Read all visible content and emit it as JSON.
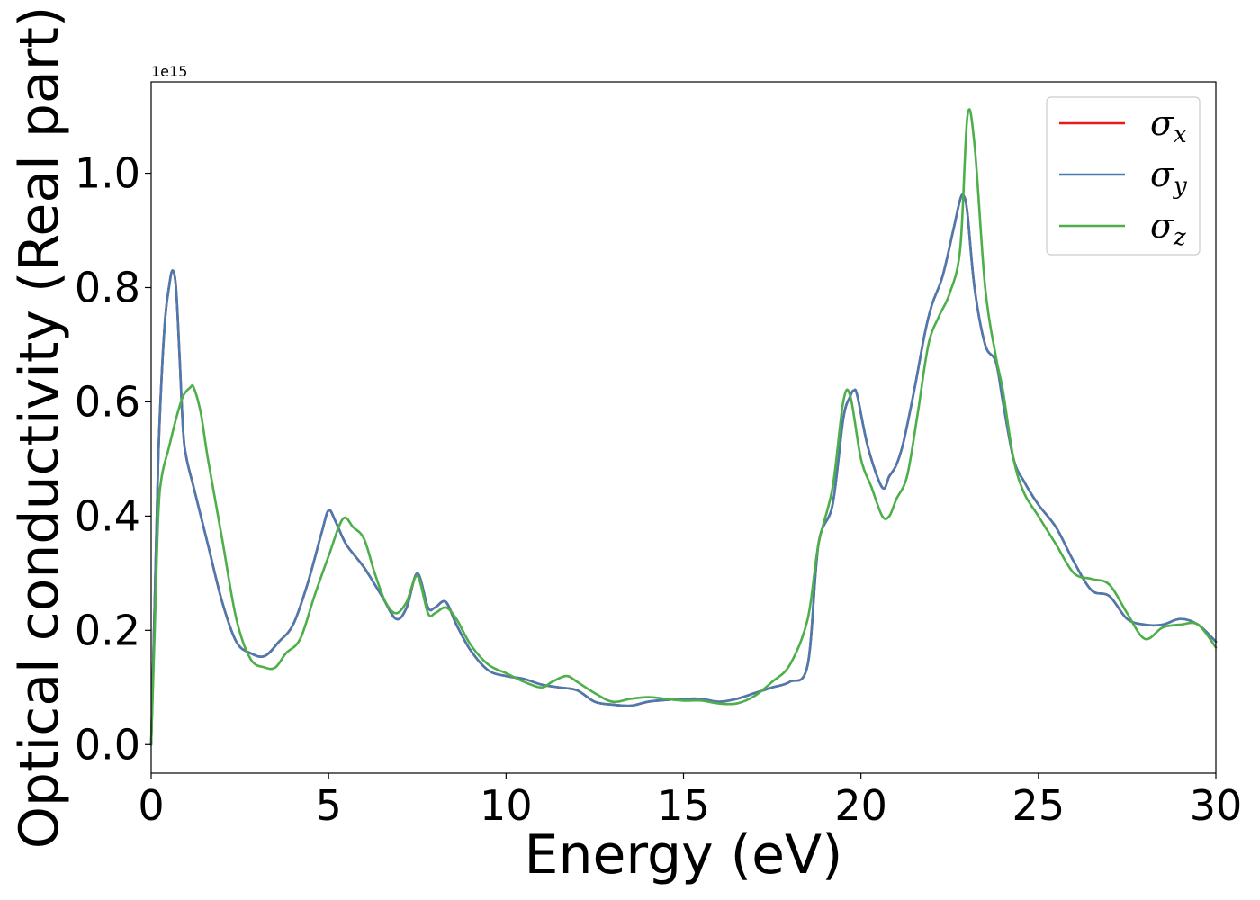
{
  "chart_data": {
    "type": "line",
    "title": "",
    "xlabel": "Energy (eV)",
    "ylabel": "Optical conductivity (Real part)",
    "y_offset_label": "1e15",
    "xlim": [
      0,
      30
    ],
    "ylim": [
      -0.05,
      1.16
    ],
    "xticks": [
      0,
      5,
      10,
      15,
      20,
      25,
      30
    ],
    "xtick_labels": [
      "0",
      "5",
      "10",
      "15",
      "20",
      "25",
      "30"
    ],
    "yticks": [
      0.0,
      0.2,
      0.4,
      0.6,
      0.8,
      1.0
    ],
    "ytick_labels": [
      "0.0",
      "0.2",
      "0.4",
      "0.6",
      "0.8",
      "1.0"
    ],
    "grid": false,
    "legend_position": "top-right",
    "series": [
      {
        "name": "σx",
        "symbol": "σ",
        "subscript": "x",
        "color": "#e41a1c",
        "x": [
          0,
          0.1,
          0.2,
          0.3,
          0.4,
          0.5,
          0.6,
          0.7,
          0.8,
          0.9,
          1.0,
          1.2,
          1.4,
          1.6,
          2.0,
          2.4,
          2.8,
          3.2,
          3.6,
          4.0,
          4.4,
          4.8,
          5.0,
          5.2,
          5.5,
          6.0,
          6.5,
          6.9,
          7.2,
          7.5,
          7.8,
          8.0,
          8.3,
          8.6,
          9.0,
          9.5,
          10.0,
          10.5,
          11.0,
          11.5,
          12.0,
          12.5,
          13.0,
          13.5,
          14.0,
          14.5,
          15.0,
          15.5,
          16.0,
          16.5,
          17.0,
          17.5,
          18.0,
          18.5,
          18.8,
          19.2,
          19.5,
          19.7,
          19.8,
          19.9,
          20.2,
          20.6,
          20.8,
          21.0,
          21.2,
          21.5,
          21.8,
          22.0,
          22.3,
          22.6,
          22.8,
          22.9,
          23.0,
          23.2,
          23.5,
          23.8,
          24.0,
          24.3,
          24.6,
          25.0,
          25.5,
          26.0,
          26.5,
          27.0,
          27.5,
          28.0,
          28.5,
          29.0,
          29.5,
          30.0
        ],
        "values": [
          0.0,
          0.25,
          0.5,
          0.65,
          0.75,
          0.8,
          0.83,
          0.8,
          0.68,
          0.55,
          0.5,
          0.45,
          0.4,
          0.35,
          0.25,
          0.18,
          0.16,
          0.155,
          0.18,
          0.21,
          0.28,
          0.37,
          0.41,
          0.39,
          0.35,
          0.31,
          0.26,
          0.22,
          0.24,
          0.3,
          0.24,
          0.24,
          0.25,
          0.21,
          0.165,
          0.13,
          0.12,
          0.115,
          0.105,
          0.1,
          0.095,
          0.075,
          0.07,
          0.068,
          0.075,
          0.078,
          0.08,
          0.08,
          0.075,
          0.08,
          0.09,
          0.1,
          0.11,
          0.14,
          0.35,
          0.42,
          0.57,
          0.61,
          0.62,
          0.61,
          0.52,
          0.45,
          0.47,
          0.49,
          0.53,
          0.62,
          0.72,
          0.77,
          0.82,
          0.9,
          0.955,
          0.96,
          0.93,
          0.8,
          0.7,
          0.67,
          0.6,
          0.5,
          0.46,
          0.42,
          0.38,
          0.32,
          0.27,
          0.26,
          0.22,
          0.21,
          0.21,
          0.22,
          0.21,
          0.18
        ]
      },
      {
        "name": "σy",
        "symbol": "σ",
        "subscript": "y",
        "color": "#4a7ab0",
        "x": [
          0,
          0.1,
          0.2,
          0.3,
          0.4,
          0.5,
          0.6,
          0.7,
          0.8,
          0.9,
          1.0,
          1.2,
          1.4,
          1.6,
          2.0,
          2.4,
          2.8,
          3.2,
          3.6,
          4.0,
          4.4,
          4.8,
          5.0,
          5.2,
          5.5,
          6.0,
          6.5,
          6.9,
          7.2,
          7.5,
          7.8,
          8.0,
          8.3,
          8.6,
          9.0,
          9.5,
          10.0,
          10.5,
          11.0,
          11.5,
          12.0,
          12.5,
          13.0,
          13.5,
          14.0,
          14.5,
          15.0,
          15.5,
          16.0,
          16.5,
          17.0,
          17.5,
          18.0,
          18.5,
          18.8,
          19.2,
          19.5,
          19.7,
          19.8,
          19.9,
          20.2,
          20.6,
          20.8,
          21.0,
          21.2,
          21.5,
          21.8,
          22.0,
          22.3,
          22.6,
          22.8,
          22.9,
          23.0,
          23.2,
          23.5,
          23.8,
          24.0,
          24.3,
          24.6,
          25.0,
          25.5,
          26.0,
          26.5,
          27.0,
          27.5,
          28.0,
          28.5,
          29.0,
          29.5,
          30.0
        ],
        "values": [
          0.0,
          0.25,
          0.5,
          0.65,
          0.75,
          0.8,
          0.83,
          0.8,
          0.68,
          0.55,
          0.5,
          0.45,
          0.4,
          0.35,
          0.25,
          0.18,
          0.16,
          0.155,
          0.18,
          0.21,
          0.28,
          0.37,
          0.41,
          0.39,
          0.35,
          0.31,
          0.26,
          0.22,
          0.24,
          0.3,
          0.24,
          0.24,
          0.25,
          0.21,
          0.165,
          0.13,
          0.12,
          0.115,
          0.105,
          0.1,
          0.095,
          0.075,
          0.07,
          0.068,
          0.075,
          0.078,
          0.08,
          0.08,
          0.075,
          0.08,
          0.09,
          0.1,
          0.11,
          0.14,
          0.35,
          0.42,
          0.57,
          0.61,
          0.62,
          0.61,
          0.52,
          0.45,
          0.47,
          0.49,
          0.53,
          0.62,
          0.72,
          0.77,
          0.82,
          0.9,
          0.955,
          0.96,
          0.93,
          0.8,
          0.7,
          0.67,
          0.6,
          0.5,
          0.46,
          0.42,
          0.38,
          0.32,
          0.27,
          0.26,
          0.22,
          0.21,
          0.21,
          0.22,
          0.21,
          0.18
        ]
      },
      {
        "name": "σz",
        "symbol": "σ",
        "subscript": "z",
        "color": "#4daf4a",
        "x": [
          0,
          0.1,
          0.2,
          0.3,
          0.5,
          0.7,
          0.9,
          1.1,
          1.2,
          1.4,
          1.6,
          2.0,
          2.4,
          2.8,
          3.2,
          3.5,
          3.8,
          4.2,
          4.6,
          5.0,
          5.4,
          5.7,
          6.0,
          6.3,
          6.6,
          6.9,
          7.2,
          7.5,
          7.8,
          8.0,
          8.3,
          8.6,
          9.0,
          9.5,
          10.0,
          10.5,
          11.0,
          11.3,
          11.7,
          12.0,
          12.5,
          13.0,
          13.5,
          14.0,
          14.5,
          15.0,
          15.5,
          16.0,
          16.5,
          17.0,
          17.5,
          18.0,
          18.5,
          18.8,
          19.2,
          19.5,
          19.7,
          20.0,
          20.3,
          20.6,
          20.8,
          21.0,
          21.3,
          21.6,
          21.9,
          22.2,
          22.5,
          22.8,
          23.0,
          23.2,
          23.5,
          23.8,
          24.0,
          24.3,
          24.6,
          25.0,
          25.5,
          26.0,
          26.5,
          27.0,
          27.5,
          28.0,
          28.5,
          29.0,
          29.5,
          30.0
        ],
        "values": [
          0.0,
          0.2,
          0.4,
          0.47,
          0.52,
          0.57,
          0.61,
          0.625,
          0.625,
          0.58,
          0.5,
          0.36,
          0.22,
          0.15,
          0.135,
          0.135,
          0.16,
          0.185,
          0.26,
          0.33,
          0.395,
          0.38,
          0.36,
          0.3,
          0.25,
          0.23,
          0.25,
          0.295,
          0.23,
          0.23,
          0.24,
          0.22,
          0.175,
          0.14,
          0.125,
          0.11,
          0.1,
          0.11,
          0.12,
          0.11,
          0.09,
          0.075,
          0.08,
          0.083,
          0.08,
          0.077,
          0.077,
          0.072,
          0.072,
          0.085,
          0.11,
          0.14,
          0.22,
          0.35,
          0.45,
          0.6,
          0.61,
          0.5,
          0.45,
          0.4,
          0.4,
          0.43,
          0.47,
          0.58,
          0.7,
          0.75,
          0.79,
          0.87,
          1.1,
          1.05,
          0.8,
          0.68,
          0.62,
          0.5,
          0.44,
          0.4,
          0.35,
          0.3,
          0.29,
          0.28,
          0.23,
          0.185,
          0.205,
          0.21,
          0.21,
          0.17
        ]
      }
    ]
  }
}
